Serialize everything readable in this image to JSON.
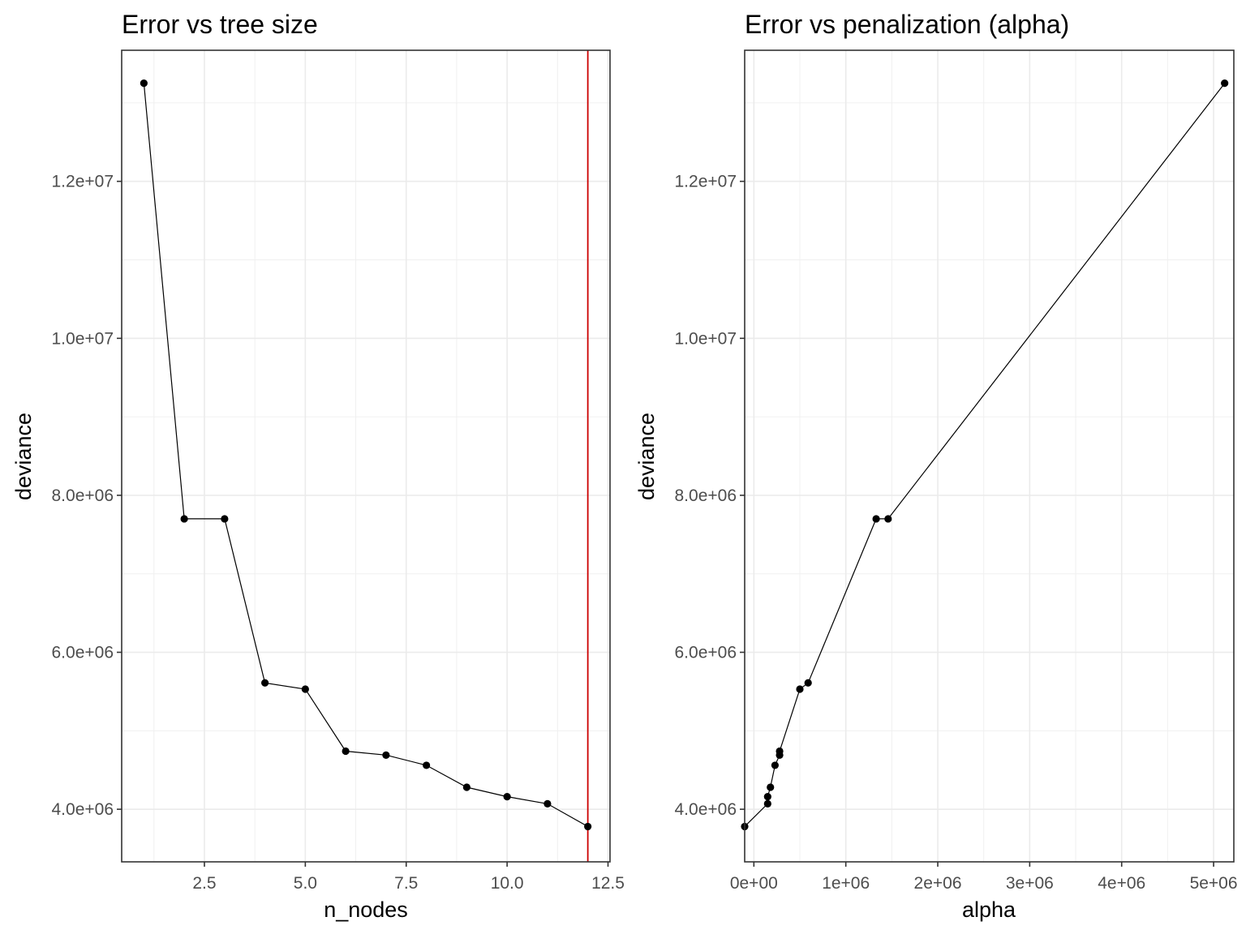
{
  "chart_data": [
    {
      "type": "line",
      "title": "Error vs tree size",
      "xlabel": "n_nodes",
      "ylabel": "deviance",
      "xlim": [
        0.45,
        12.55
      ],
      "ylim": [
        3330000,
        13670000
      ],
      "x_ticks": [
        2.5,
        5.0,
        7.5,
        10.0,
        12.5
      ],
      "x_tick_labels": [
        "2.5",
        "5.0",
        "7.5",
        "10.0",
        "12.5"
      ],
      "y_ticks": [
        4000000,
        6000000,
        8000000,
        10000000,
        12000000
      ],
      "y_tick_labels": [
        "4.0e+06",
        "6.0e+06",
        "8.0e+06",
        "1.0e+07",
        "1.2e+07"
      ],
      "grid": true,
      "series": [
        {
          "x": [
            1,
            2,
            3,
            4,
            5,
            6,
            7,
            8,
            9,
            10,
            11,
            12
          ],
          "y": [
            13250000,
            7700000,
            7700000,
            5610000,
            5530000,
            4740000,
            4690000,
            4560000,
            4280000,
            4160000,
            4070000,
            3780000
          ]
        }
      ],
      "vline": {
        "x": 12,
        "color": "#cc0000"
      },
      "colors": {
        "line": "#000000",
        "point": "#000000"
      }
    },
    {
      "type": "line",
      "title": "Error vs penalization (alpha)",
      "xlabel": "alpha",
      "ylabel": "deviance",
      "xlim": [
        -100000,
        5220000
      ],
      "ylim": [
        3330000,
        13670000
      ],
      "x_ticks": [
        0,
        1000000,
        2000000,
        3000000,
        4000000,
        5000000
      ],
      "x_tick_labels": [
        "0e+00",
        "1e+06",
        "2e+06",
        "3e+06",
        "4e+06",
        "5e+06"
      ],
      "y_ticks": [
        4000000,
        6000000,
        8000000,
        10000000,
        12000000
      ],
      "y_tick_labels": [
        "4.0e+06",
        "6.0e+06",
        "8.0e+06",
        "1.0e+07",
        "1.2e+07"
      ],
      "grid": true,
      "series": [
        {
          "x": [
            -100000,
            150000,
            150000,
            180000,
            230000,
            280000,
            280000,
            500000,
            590000,
            1330000,
            1460000,
            5120000
          ],
          "y": [
            3780000,
            4070000,
            4160000,
            4280000,
            4560000,
            4690000,
            4740000,
            5530000,
            5610000,
            7700000,
            7700000,
            13250000
          ]
        }
      ],
      "colors": {
        "line": "#000000",
        "point": "#000000"
      }
    }
  ]
}
